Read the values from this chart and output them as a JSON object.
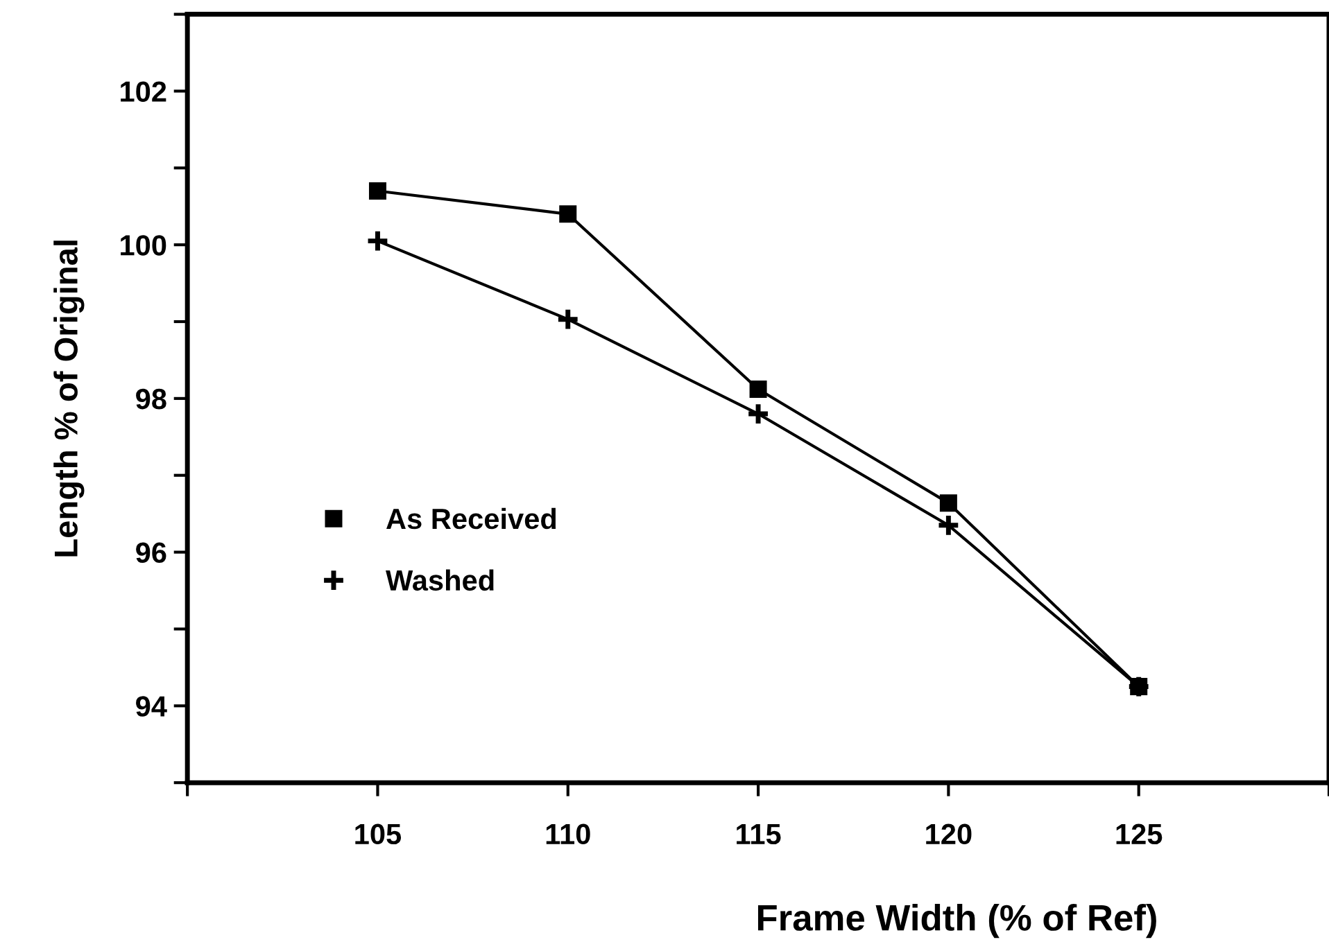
{
  "chart_data": {
    "type": "line",
    "xlabel": "Frame Width (% of Ref)",
    "ylabel": "Length % of Original",
    "x": [
      105,
      110,
      115,
      120,
      125
    ],
    "series": [
      {
        "name": "As Received",
        "color": "#000000",
        "marker": "square",
        "values": [
          100.7,
          100.4,
          98.12,
          96.64,
          94.25
        ]
      },
      {
        "name": "Washed",
        "color": "#000000",
        "marker": "cross",
        "values": [
          100.05,
          99.03,
          97.8,
          96.35,
          94.25
        ]
      }
    ],
    "xlim": [
      100,
      130
    ],
    "xticks": [
      {
        "value": 100,
        "label": null
      },
      105,
      110,
      115,
      120,
      125,
      {
        "value": 130,
        "label": null
      }
    ],
    "ylim": [
      93,
      103
    ],
    "yticks": [
      {
        "value": 93,
        "label": null
      },
      94,
      {
        "value": 95,
        "label": null
      },
      96,
      {
        "value": 97,
        "label": null
      },
      98,
      {
        "value": 99,
        "label": null
      },
      100,
      {
        "value": 101,
        "label": null
      },
      102,
      {
        "value": 103,
        "label": null
      }
    ],
    "grid": false,
    "legend": "left",
    "line_style": "solid"
  }
}
